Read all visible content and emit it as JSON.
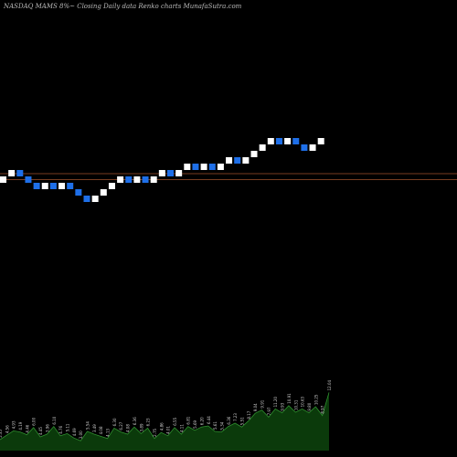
{
  "header": {
    "text": "NASDAQ MAMS 8%~  Closing Daily data  Renko  charts MunafaSutra.com"
  },
  "colors": {
    "background": "#000000",
    "up_brick": "#ffffff",
    "down_brick": "#1e6fe8",
    "level_line": "#a0522d",
    "volume_fill": "#0b3a0b",
    "volume_edge": "#2f8f2f"
  },
  "chart_data": [
    {
      "type": "renko",
      "brick_directions": [
        "up",
        "up",
        "down",
        "down",
        "down",
        "up",
        "down",
        "up",
        "down",
        "down",
        "down",
        "up",
        "up",
        "up",
        "up",
        "down",
        "up",
        "down",
        "up",
        "up",
        "down",
        "up",
        "up",
        "down",
        "up",
        "down",
        "up",
        "up",
        "down",
        "up",
        "up",
        "up",
        "up",
        "down",
        "up",
        "down",
        "down",
        "up",
        "up"
      ],
      "levels": [
        2,
        1
      ],
      "grid": false
    },
    {
      "type": "area",
      "series": [
        {
          "values": [
            2.0,
            2.8,
            3.6,
            3.4,
            2.9,
            4.2,
            2.5,
            3.0,
            4.4,
            2.7,
            3.1,
            2.3,
            1.8,
            3.5,
            3.0,
            2.6,
            2.2,
            4.1,
            3.4,
            3.0,
            4.3,
            3.1,
            4.1,
            2.2,
            3.3,
            2.7,
            4.2,
            3.0,
            4.4,
            3.7,
            4.3,
            4.5,
            3.5,
            3.4,
            4.4,
            5.0,
            4.3,
            5.4,
            6.8,
            7.4,
            6.1,
            7.6,
            6.9,
            8.2,
            7.0,
            7.6,
            6.9,
            8.0,
            6.4,
            10.6
          ]
        }
      ],
      "point_labels": [
        "5.35",
        "4.56",
        "4.93",
        "4.19",
        "4.46",
        "6.00",
        "4.45",
        "3.96",
        "6.10",
        "4.76",
        "5.11",
        "4.69",
        "3.00",
        "5.54",
        "3.49",
        "4.08",
        "4.13",
        "6.30",
        "6.27",
        "4.08",
        "6.36",
        "3.89",
        "6.23",
        "2.75",
        "4.86",
        "4.01",
        "6.55",
        "4.11",
        "6.81",
        "5.69",
        "6.20",
        "6.44",
        "5.61",
        "5.34",
        "6.36",
        "7.23",
        "5.51",
        "8.17",
        "9.04",
        "9.91",
        "7.97",
        "11.20",
        "9.93",
        "10.91",
        "10.31",
        "10.63",
        "9.80",
        "10.25",
        "8.97",
        "12.04"
      ]
    }
  ]
}
